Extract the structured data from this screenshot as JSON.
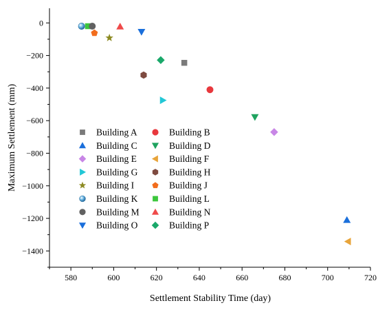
{
  "chart_data": {
    "type": "scatter",
    "xlabel": "Settlement Stability Time (day)",
    "ylabel": "Maximum Settlement (mm)",
    "xlim": [
      570,
      720
    ],
    "ylim": [
      -1500,
      90
    ],
    "x_ticks": [
      580,
      600,
      620,
      640,
      660,
      680,
      700,
      720
    ],
    "y_ticks": [
      0,
      -200,
      -400,
      -600,
      -800,
      -1000,
      -1200,
      -1400
    ],
    "legend_position": "lower-left",
    "grid": false,
    "series": [
      {
        "name": "Building A",
        "marker": "square",
        "color": "#7a7a7a",
        "points": [
          [
            633,
            -245
          ]
        ]
      },
      {
        "name": "Building B",
        "marker": "circle",
        "color": "#e8383d",
        "points": [
          [
            645,
            -410
          ]
        ]
      },
      {
        "name": "Building C",
        "marker": "triangle-up",
        "color": "#1a6fdb",
        "points": [
          [
            709,
            -1210
          ]
        ]
      },
      {
        "name": "Building D",
        "marker": "triangle-down",
        "color": "#1fa35f",
        "points": [
          [
            666,
            -578
          ]
        ]
      },
      {
        "name": "Building E",
        "marker": "diamond",
        "color": "#c886e6",
        "points": [
          [
            675,
            -670
          ]
        ]
      },
      {
        "name": "Building F",
        "marker": "triangle-left",
        "color": "#e8a43a",
        "points": [
          [
            709.5,
            -1342
          ]
        ]
      },
      {
        "name": "Building G",
        "marker": "triangle-right",
        "color": "#22c7d6",
        "points": [
          [
            623,
            -475
          ]
        ]
      },
      {
        "name": "Building H",
        "marker": "hexagon",
        "color": "#7e4a40",
        "points": [
          [
            614,
            -320
          ]
        ]
      },
      {
        "name": "Building I",
        "marker": "star",
        "color": "#8c8a22",
        "points": [
          [
            598,
            -92
          ]
        ]
      },
      {
        "name": "Building J",
        "marker": "pentagon",
        "color": "#f26d1d",
        "points": [
          [
            591,
            -62
          ]
        ]
      },
      {
        "name": "Building K",
        "marker": "sphere",
        "color": "#3a9bd6",
        "points": [
          [
            585,
            -20
          ]
        ]
      },
      {
        "name": "Building L",
        "marker": "square",
        "color": "#3cc63c",
        "points": [
          [
            588,
            -20
          ]
        ]
      },
      {
        "name": "Building M",
        "marker": "circle",
        "color": "#616161",
        "points": [
          [
            590,
            -20
          ]
        ]
      },
      {
        "name": "Building N",
        "marker": "triangle-up",
        "color": "#ef4a4a",
        "points": [
          [
            603,
            -22
          ]
        ]
      },
      {
        "name": "Building O",
        "marker": "triangle-down",
        "color": "#1a6fdb",
        "points": [
          [
            613,
            -55
          ]
        ]
      },
      {
        "name": "Building P",
        "marker": "diamond",
        "color": "#1aa86a",
        "points": [
          [
            622,
            -228
          ]
        ]
      }
    ]
  }
}
